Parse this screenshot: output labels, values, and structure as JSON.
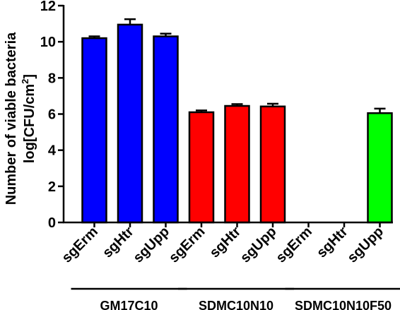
{
  "chart_data": {
    "type": "bar",
    "ylabel_line1": "Number of viable bacteria",
    "ylabel_line2_prefix": "log[CFU/cm",
    "ylabel_line2_sup": "2",
    "ylabel_line2_suffix": "]",
    "ylim": [
      0,
      12
    ],
    "yticks": [
      "0",
      "2",
      "4",
      "6",
      "8",
      "10",
      "12"
    ],
    "grid": false,
    "categories": [
      "sgErm",
      "sgHtr",
      "sgUpp",
      "sgErm",
      "sgHtr",
      "sgUpp",
      "sgErm",
      "sgHtr",
      "sgUpp"
    ],
    "values": [
      10.2,
      10.95,
      10.3,
      6.1,
      6.45,
      6.42,
      0,
      0,
      6.05
    ],
    "errors": [
      0.1,
      0.3,
      0.15,
      0.1,
      0.1,
      0.15,
      0,
      0,
      0.25
    ],
    "groups": [
      {
        "label": "GM17C10",
        "start": 0,
        "end": 2,
        "color": "#0000ff"
      },
      {
        "label": "SDMC10N10",
        "start": 3,
        "end": 5,
        "color": "#ff0000"
      },
      {
        "label": "SDMC10N10F50",
        "start": 6,
        "end": 8,
        "color": "#00ff00"
      }
    ]
  }
}
